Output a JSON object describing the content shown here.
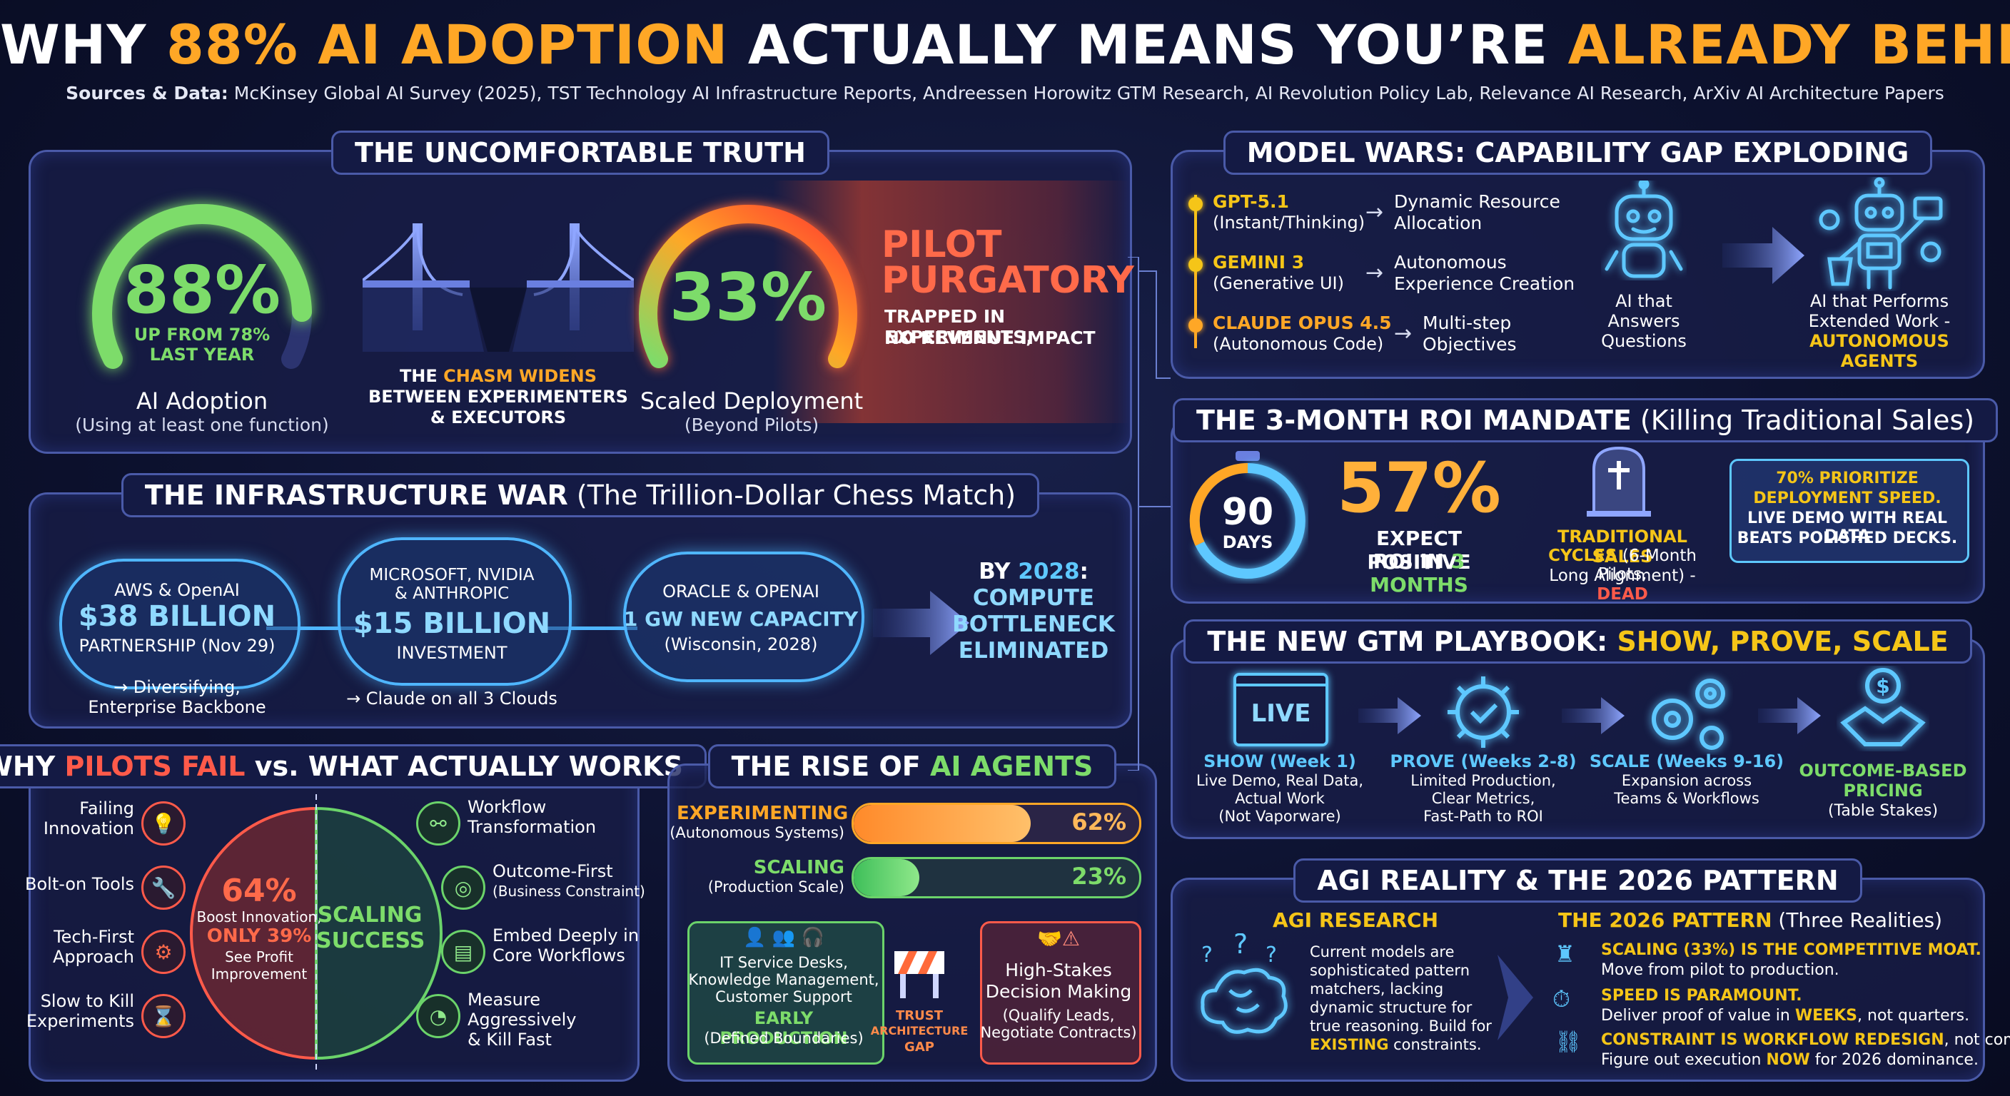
{
  "header": {
    "t1": "WHY ",
    "t2": "88% AI ADOPTION",
    "t3": " ACTUALLY MEANS YOU’RE ",
    "t4": "ALREADY BEHIND",
    "src_label": "Sources & Data:",
    "src_text": " McKinsey Global AI Survey (2025), TST Technology AI Infrastructure Reports, Andreessen Horowitz GTM Research, AI Revolution Policy Lab, Relevance AI Research, ArXiv AI Architecture Papers"
  },
  "truth": {
    "title": "THE UNCOMFORTABLE TRUTH",
    "adoption_value": "88%",
    "adoption_fraction": 0.88,
    "adoption_note1": "UP FROM 78%",
    "adoption_note2": "LAST YEAR",
    "adoption_label": "AI Adoption",
    "adoption_sub": "(Using at least one function)",
    "chasm_a": "THE ",
    "chasm_b": "CHASM WIDENS",
    "chasm_c": "BETWEEN EXPERIMENTERS",
    "chasm_d": "& EXECUTORS",
    "scaled_value": "33%",
    "scaled_fraction": 0.33,
    "scaled_label": "Scaled Deployment",
    "scaled_sub": "(Beyond Pilots)",
    "pilot1": "PILOT",
    "pilot2": "PURGATORY",
    "pilot3": "TRAPPED IN EXPERIMENTS,",
    "pilot4": "NO REVENUE IMPACT"
  },
  "infra": {
    "title_a": "THE INFRASTRUCTURE WAR",
    "title_b": " (The Trillion-Dollar Chess Match)",
    "c1_top": "AWS & OpenAI",
    "c1_value": "$38 BILLION",
    "c1_sub": "PARTNERSHIP (Nov 29)",
    "c1_note1": "→ Diversifying,",
    "c1_note2": "Enterprise Backbone",
    "c2_top1": "MICROSOFT, NVIDIA",
    "c2_top2": "& ANTHROPIC",
    "c2_value": "$15 BILLION",
    "c2_sub": "INVESTMENT",
    "c2_note": "→ Claude on all 3 Clouds",
    "c3_top": "ORACLE & OPENAI",
    "c3_value": "1 GW NEW CAPACITY",
    "c3_sub": "(Wisconsin, 2028)",
    "by1a": "BY ",
    "by1b": "2028",
    "by1c": ":",
    "by2": "COMPUTE",
    "by3": "BOTTLENECK",
    "by4": "ELIMINATED"
  },
  "pilots": {
    "title_a": "WHY ",
    "title_b": "PILOTS FAIL",
    "title_c": " vs. WHAT ACTUALLY WORKS",
    "fail": [
      {
        "l1": "Failing",
        "l2": "Innovation",
        "icon": "lightbulb-icon",
        "glyph": "💡"
      },
      {
        "l1": "Bolt-on Tools",
        "l2": "",
        "icon": "wrench-icon",
        "glyph": "🔧"
      },
      {
        "l1": "Tech-First",
        "l2": "Approach",
        "icon": "gear-icon",
        "glyph": "⚙"
      },
      {
        "l1": "Slow to Kill",
        "l2": "Experiments",
        "icon": "hourglass-icon",
        "glyph": "⌛"
      }
    ],
    "work": [
      {
        "l1": "Workflow",
        "l2": "Transformation",
        "l3": "",
        "icon": "network-icon",
        "glyph": "⚯"
      },
      {
        "l1": "Outcome-First",
        "l2": "(Business Constraint)",
        "l3": "",
        "icon": "target-icon",
        "glyph": "◎"
      },
      {
        "l1": "Embed Deeply in",
        "l2": "Core Workflows",
        "l3": "",
        "icon": "document-icon",
        "glyph": "▤"
      },
      {
        "l1": "Measure",
        "l2": "Aggressively",
        "l3": "& Kill Fast",
        "icon": "gauge-icon",
        "glyph": "◔"
      }
    ],
    "left_value": "64%",
    "left_l1": "Boost Innovation,",
    "left_l2": "ONLY 39%",
    "left_l3": "See Profit",
    "left_l4": "Improvement",
    "right_l1": "SCALING",
    "right_l2": "SUCCESS"
  },
  "agents": {
    "title_a": "THE RISE OF ",
    "title_b": "AI AGENTS",
    "bar1_label": "EXPERIMENTING",
    "bar1_sub": "(Autonomous Systems)",
    "bar1_value": "62%",
    "bar1_fraction": 0.62,
    "bar2_label": "SCALING",
    "bar2_sub": "(Production Scale)",
    "bar2_value": "23%",
    "bar2_fraction": 0.23,
    "box1_l1": "IT Service Desks,",
    "box1_l2": "Knowledge Management,",
    "box1_l3": "Customer Support",
    "box1_t1": "EARLY PRODUCTION",
    "box1_t2": "(Defined Boundaries)",
    "gap1": "TRUST",
    "gap2": "ARCHITECTURE",
    "gap3": "GAP",
    "box2_l1": "High-Stakes",
    "box2_l2": "Decision Making",
    "box2_l3": "(Qualify Leads,",
    "box2_l4": "Negotiate Contracts)"
  },
  "model": {
    "title": "MODEL WARS: CAPABILITY GAP EXPLODING",
    "m": [
      {
        "name": "GPT-5.1",
        "sub": "(Instant/Thinking)",
        "r1": "Dynamic Resource",
        "r2": "Allocation",
        "color": "#f5c518"
      },
      {
        "name": "GEMINI 3",
        "sub": "(Generative UI)",
        "r1": "Autonomous",
        "r2": "Experience Creation",
        "color": "#f5c518"
      },
      {
        "name": "CLAUDE OPUS 4.5",
        "sub": "(Autonomous Code)",
        "r1": "Multi-step",
        "r2": "Objectives",
        "color": "#ffa726"
      }
    ],
    "ai1_l1": "AI that",
    "ai1_l2": "Answers",
    "ai1_l3": "Questions",
    "ai2_l1": "AI that Performs",
    "ai2_l2": "Extended Work -",
    "ai2_l3": "AUTONOMOUS AGENTS"
  },
  "roi": {
    "title_a": "THE 3-MONTH ROI MANDATE",
    "title_b": " (Killing Traditional Sales)",
    "timer_value": "90",
    "timer_unit": "DAYS",
    "pct": "57%",
    "pct_l1": "EXPECT POSITIVE",
    "pct_l2a": "ROI IN ",
    "pct_l2b": "3 MONTHS",
    "trad1": "TRADITIONAL SALES",
    "trad2a": "CYCLES",
    "trad2b": " (6-Month Pilots,",
    "trad3a": "Long Alignment) - ",
    "trad3b": "DEAD",
    "box1": "70% PRIORITIZE",
    "box2": "DEPLOYMENT SPEED.",
    "box3": "LIVE DEMO WITH REAL DATA",
    "box4": "BEATS POLISHED DECKS."
  },
  "gtm": {
    "title_a": "THE NEW GTM PLAYBOOK: ",
    "title_b": "SHOW, PROVE, SCALE",
    "live": "LIVE",
    "steps": [
      {
        "t": "SHOW (Week 1)",
        "l1": "Live Demo, Real Data,",
        "l2": "Actual Work",
        "l3": "(Not Vaporware)"
      },
      {
        "t": "PROVE (Weeks 2-8)",
        "l1": "Limited Production,",
        "l2": "Clear Metrics,",
        "l3": "Fast-Path to ROI"
      },
      {
        "t": "SCALE (Weeks 9-16)",
        "l1": "Expansion across",
        "l2": "Teams & Workflows",
        "l3": ""
      },
      {
        "t": "OUTCOME-BASED",
        "l1": "PRICING",
        "l2": "(Table Stakes)",
        "l3": ""
      }
    ]
  },
  "agi": {
    "title": "AGI REALITY & THE 2026 PATTERN",
    "left_t": "AGI RESEARCH",
    "left_l1": "Current models are",
    "left_l2": "sophisticated pattern",
    "left_l3": "matchers, lacking",
    "left_l4": "dynamic structure for",
    "left_l5": "true reasoning. Build for",
    "left_l6": "EXISTING",
    "left_l6b": " constraints.",
    "right_t_a": "THE 2026 PATTERN",
    "right_t_b": " (Three Realities)",
    "r1a": "SCALING (33%) IS THE COMPETITIVE MOAT.",
    "r1b": "Move from pilot to production.",
    "r2a": "SPEED IS PARAMOUNT.",
    "r2b_1": "Deliver proof of value in ",
    "r2b_2": "WEEKS",
    "r2b_3": ", not quarters.",
    "r3a_1": "CONSTRAINT IS WORKFLOW REDESIGN",
    "r3a_2": ", not compute.",
    "r3b_1": "Figure out execution ",
    "r3b_2": "NOW",
    "r3b_3": " for 2026 dominance."
  }
}
